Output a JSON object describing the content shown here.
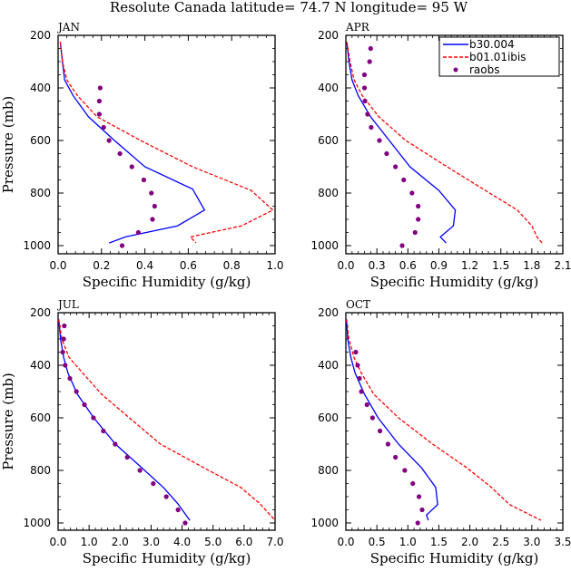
{
  "title": "Resolute Canada   latitude= 74.7 N longitude= 95 W",
  "legend": {
    "items": [
      {
        "name": "b30.004",
        "style": "solid",
        "color": "#0000ff"
      },
      {
        "name": "b01.01ibis",
        "style": "dashed",
        "color": "#ff0000"
      },
      {
        "name": "raobs",
        "style": "marker",
        "color": "#800080"
      }
    ]
  },
  "chart_data": [
    {
      "type": "line",
      "panel": "JAN",
      "title": "JAN",
      "xlabel": "Specific Humidity (g/kg)",
      "ylabel": "Pressure (mb)",
      "xlim": [
        0,
        1.0
      ],
      "ylim": [
        200,
        1030
      ],
      "y_inverted": true,
      "xticks": [
        "0.0",
        "0.2",
        "0.4",
        "0.6",
        "0.8",
        "1.0"
      ],
      "xtick_values": [
        0,
        0.2,
        0.4,
        0.6,
        0.8,
        1.0
      ],
      "yticks": [
        "200",
        "400",
        "600",
        "800",
        "1000"
      ],
      "ytick_values": [
        200,
        400,
        600,
        800,
        1000
      ],
      "series": [
        {
          "name": "b30.004",
          "x": [
            0.01,
            0.02,
            0.03,
            0.07,
            0.14,
            0.26,
            0.4,
            0.62,
            0.675,
            0.55,
            0.31,
            0.235
          ],
          "y": [
            225,
            300,
            370,
            430,
            510,
            600,
            700,
            785,
            865,
            925,
            967,
            990
          ]
        },
        {
          "name": "b01.01ibis",
          "x": [
            0.01,
            0.02,
            0.04,
            0.09,
            0.18,
            0.38,
            0.62,
            0.89,
            0.99,
            0.845,
            0.61,
            0.635
          ],
          "y": [
            225,
            300,
            370,
            430,
            510,
            600,
            700,
            790,
            865,
            925,
            967,
            990
          ]
        },
        {
          "name": "raobs",
          "x": [
            0.194,
            0.19,
            0.19,
            0.21,
            0.235,
            0.285,
            0.34,
            0.395,
            0.43,
            0.445,
            0.435,
            0.37,
            0.295
          ],
          "y": [
            400,
            450,
            500,
            550,
            600,
            650,
            700,
            750,
            800,
            850,
            900,
            950,
            1000
          ]
        }
      ]
    },
    {
      "type": "line",
      "panel": "APR",
      "title": "APR",
      "xlabel": "Specific Humidity (g/kg)",
      "ylabel": "",
      "xlim": [
        0,
        2.1
      ],
      "ylim": [
        200,
        1030
      ],
      "y_inverted": true,
      "xticks": [
        "0.0",
        "0.3",
        "0.6",
        "0.9",
        "1.2",
        "1.5",
        "1.8",
        "2.1"
      ],
      "xtick_values": [
        0,
        0.3,
        0.6,
        0.9,
        1.2,
        1.5,
        1.8,
        2.1
      ],
      "yticks": [
        "200",
        "400",
        "600",
        "800",
        "1000"
      ],
      "ytick_values": [
        200,
        400,
        600,
        800,
        1000
      ],
      "series": [
        {
          "name": "b30.004",
          "x": [
            0.01,
            0.03,
            0.06,
            0.12,
            0.24,
            0.42,
            0.62,
            0.9,
            1.06,
            1.04,
            0.915,
            0.97
          ],
          "y": [
            225,
            300,
            370,
            430,
            510,
            600,
            700,
            790,
            865,
            925,
            967,
            990
          ]
        },
        {
          "name": "b01.01ibis",
          "x": [
            0.01,
            0.04,
            0.08,
            0.16,
            0.32,
            0.58,
            0.98,
            1.35,
            1.66,
            1.8,
            1.85,
            1.9
          ],
          "y": [
            225,
            300,
            370,
            430,
            510,
            600,
            700,
            790,
            865,
            925,
            967,
            990
          ]
        },
        {
          "name": "raobs",
          "x": [
            0.24,
            0.23,
            0.18,
            0.18,
            0.185,
            0.21,
            0.245,
            0.325,
            0.395,
            0.48,
            0.56,
            0.64,
            0.7,
            0.7,
            0.67,
            0.545
          ],
          "y": [
            250,
            300,
            350,
            400,
            450,
            500,
            550,
            600,
            650,
            700,
            750,
            800,
            850,
            900,
            950,
            1000
          ]
        }
      ]
    },
    {
      "type": "line",
      "panel": "JUL",
      "title": "JUL",
      "xlabel": "Specific Humidity (g/kg)",
      "ylabel": "Pressure (mb)",
      "xlim": [
        0,
        7.0
      ],
      "ylim": [
        200,
        1030
      ],
      "y_inverted": true,
      "xticks": [
        "0.0",
        "1.0",
        "2.0",
        "3.0",
        "4.0",
        "5.0",
        "6.0",
        "7.0"
      ],
      "xtick_values": [
        0,
        1,
        2,
        3,
        4,
        5,
        6,
        7
      ],
      "yticks": [
        "200",
        "400",
        "600",
        "800",
        "1000"
      ],
      "ytick_values": [
        200,
        400,
        600,
        800,
        1000
      ],
      "series": [
        {
          "name": "b30.004",
          "x": [
            0.02,
            0.08,
            0.18,
            0.32,
            0.62,
            1.15,
            1.85,
            2.7,
            3.4,
            3.85,
            4.25
          ],
          "y": [
            225,
            300,
            370,
            430,
            510,
            600,
            700,
            790,
            865,
            925,
            990
          ]
        },
        {
          "name": "b01.01ibis",
          "x": [
            0.02,
            0.12,
            0.35,
            0.8,
            1.4,
            2.3,
            3.3,
            4.7,
            5.9,
            6.5,
            7.0
          ],
          "y": [
            225,
            300,
            370,
            430,
            510,
            600,
            700,
            790,
            865,
            925,
            990
          ]
        },
        {
          "name": "raobs",
          "x": [
            0.2,
            0.18,
            0.15,
            0.23,
            0.38,
            0.59,
            0.85,
            1.14,
            1.46,
            1.84,
            2.23,
            2.64,
            3.07,
            3.49,
            3.87,
            4.1
          ],
          "y": [
            250,
            300,
            350,
            400,
            450,
            500,
            550,
            600,
            650,
            700,
            750,
            800,
            850,
            900,
            950,
            1000
          ]
        }
      ]
    },
    {
      "type": "line",
      "panel": "OCT",
      "title": "OCT",
      "xlabel": "Specific Humidity (g/kg)",
      "ylabel": "",
      "xlim": [
        0,
        3.5
      ],
      "ylim": [
        200,
        1030
      ],
      "y_inverted": true,
      "xticks": [
        "0.0",
        "0.5",
        "1.0",
        "1.5",
        "2.0",
        "2.5",
        "3.0",
        "3.5"
      ],
      "xtick_values": [
        0,
        0.5,
        1.0,
        1.5,
        2.0,
        2.5,
        3.0,
        3.5
      ],
      "yticks": [
        "200",
        "400",
        "600",
        "800",
        "1000"
      ],
      "ytick_values": [
        200,
        400,
        600,
        800,
        1000
      ],
      "series": [
        {
          "name": "b30.004",
          "x": [
            0.01,
            0.03,
            0.08,
            0.15,
            0.3,
            0.52,
            0.85,
            1.22,
            1.45,
            1.48,
            1.3,
            1.33
          ],
          "y": [
            225,
            300,
            370,
            430,
            510,
            600,
            700,
            790,
            865,
            930,
            970,
            990
          ]
        },
        {
          "name": "b01.01ibis",
          "x": [
            0.01,
            0.05,
            0.13,
            0.25,
            0.45,
            0.85,
            1.4,
            1.95,
            2.35,
            2.64,
            3.15
          ],
          "y": [
            225,
            300,
            370,
            430,
            510,
            600,
            700,
            790,
            865,
            930,
            990
          ]
        },
        {
          "name": "raobs",
          "x": [
            0.16,
            0.19,
            0.22,
            0.25,
            0.34,
            0.43,
            0.55,
            0.68,
            0.8,
            0.95,
            1.08,
            1.18,
            1.23,
            1.16
          ],
          "y": [
            350,
            400,
            450,
            500,
            550,
            600,
            650,
            700,
            750,
            800,
            850,
            900,
            950,
            1000
          ]
        }
      ]
    }
  ]
}
